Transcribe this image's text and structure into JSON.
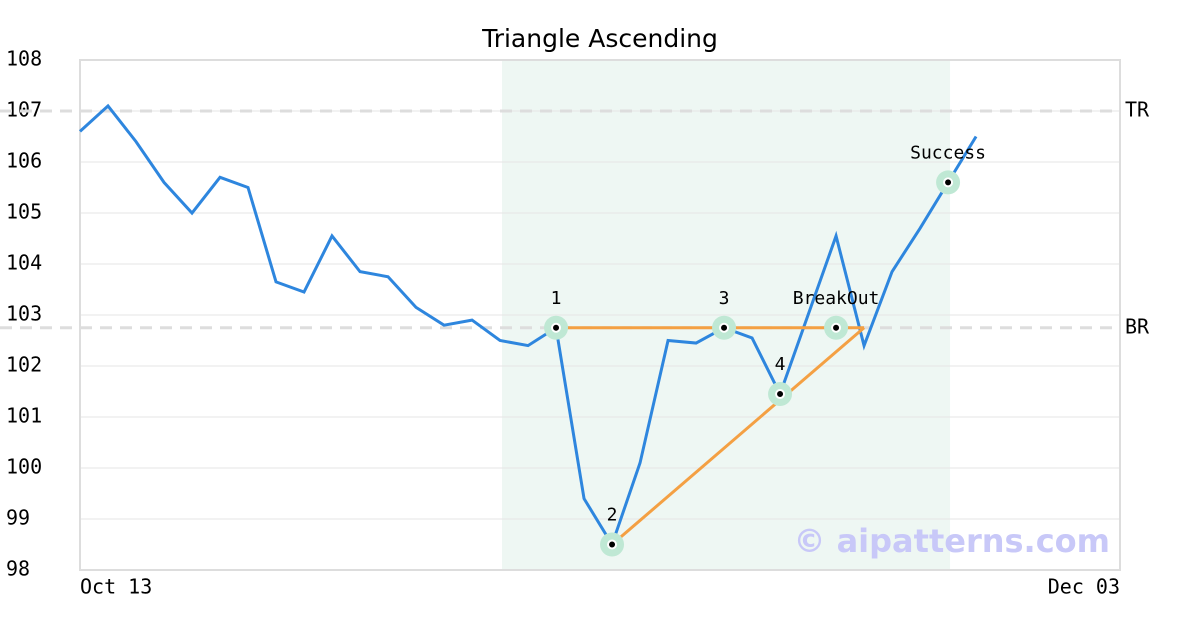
{
  "chart_data": {
    "type": "line",
    "title": "Triangle Ascending",
    "xlim": [
      0,
      37.14
    ],
    "ylim": [
      98,
      108
    ],
    "xticks": [
      {
        "value": 0,
        "label": "Oct 13"
      },
      {
        "value": 37.14,
        "label": "Dec 03"
      }
    ],
    "yticks": [
      98,
      99,
      100,
      101,
      102,
      103,
      104,
      105,
      106,
      107,
      108
    ],
    "grid": true,
    "highlight_x": [
      15.07,
      31.07
    ],
    "series": [
      {
        "color": "#2e86de",
        "x": [
          0,
          1,
          2,
          3,
          4,
          5,
          6,
          7,
          8,
          9,
          10,
          11,
          12,
          13,
          14,
          15,
          16,
          17,
          18,
          19,
          20,
          21,
          22,
          23,
          24,
          25,
          26,
          27,
          28,
          29,
          30,
          31,
          32
        ],
        "values": [
          106.6,
          107.1,
          106.4,
          105.6,
          105.0,
          105.7,
          105.5,
          103.65,
          103.45,
          104.55,
          103.85,
          103.75,
          103.15,
          102.8,
          102.9,
          102.5,
          102.4,
          102.75,
          99.4,
          98.5,
          100.1,
          102.5,
          102.45,
          102.75,
          102.55,
          101.45,
          103.0,
          104.55,
          102.4,
          103.85,
          104.7,
          105.6,
          106.5
        ]
      }
    ],
    "levels": [
      {
        "label": "TR",
        "value": 107
      },
      {
        "label": "BR",
        "value": 102.75
      }
    ],
    "trend_lines": [
      {
        "color": "#f4a043",
        "x": [
          17,
          28
        ],
        "y": [
          102.75,
          102.75
        ]
      },
      {
        "color": "#f4a043",
        "x": [
          19,
          28
        ],
        "y": [
          98.5,
          102.75
        ]
      }
    ],
    "points": [
      {
        "label": "1",
        "x": 17,
        "y": 102.75
      },
      {
        "label": "2",
        "x": 19,
        "y": 98.5
      },
      {
        "label": "3",
        "x": 23,
        "y": 102.75
      },
      {
        "label": "4",
        "x": 25,
        "y": 101.45
      },
      {
        "label": "BreakOut",
        "x": 27,
        "y": 102.75
      },
      {
        "label": "Success",
        "x": 31,
        "y": 105.6
      }
    ],
    "watermark": "© aipatterns.com"
  }
}
